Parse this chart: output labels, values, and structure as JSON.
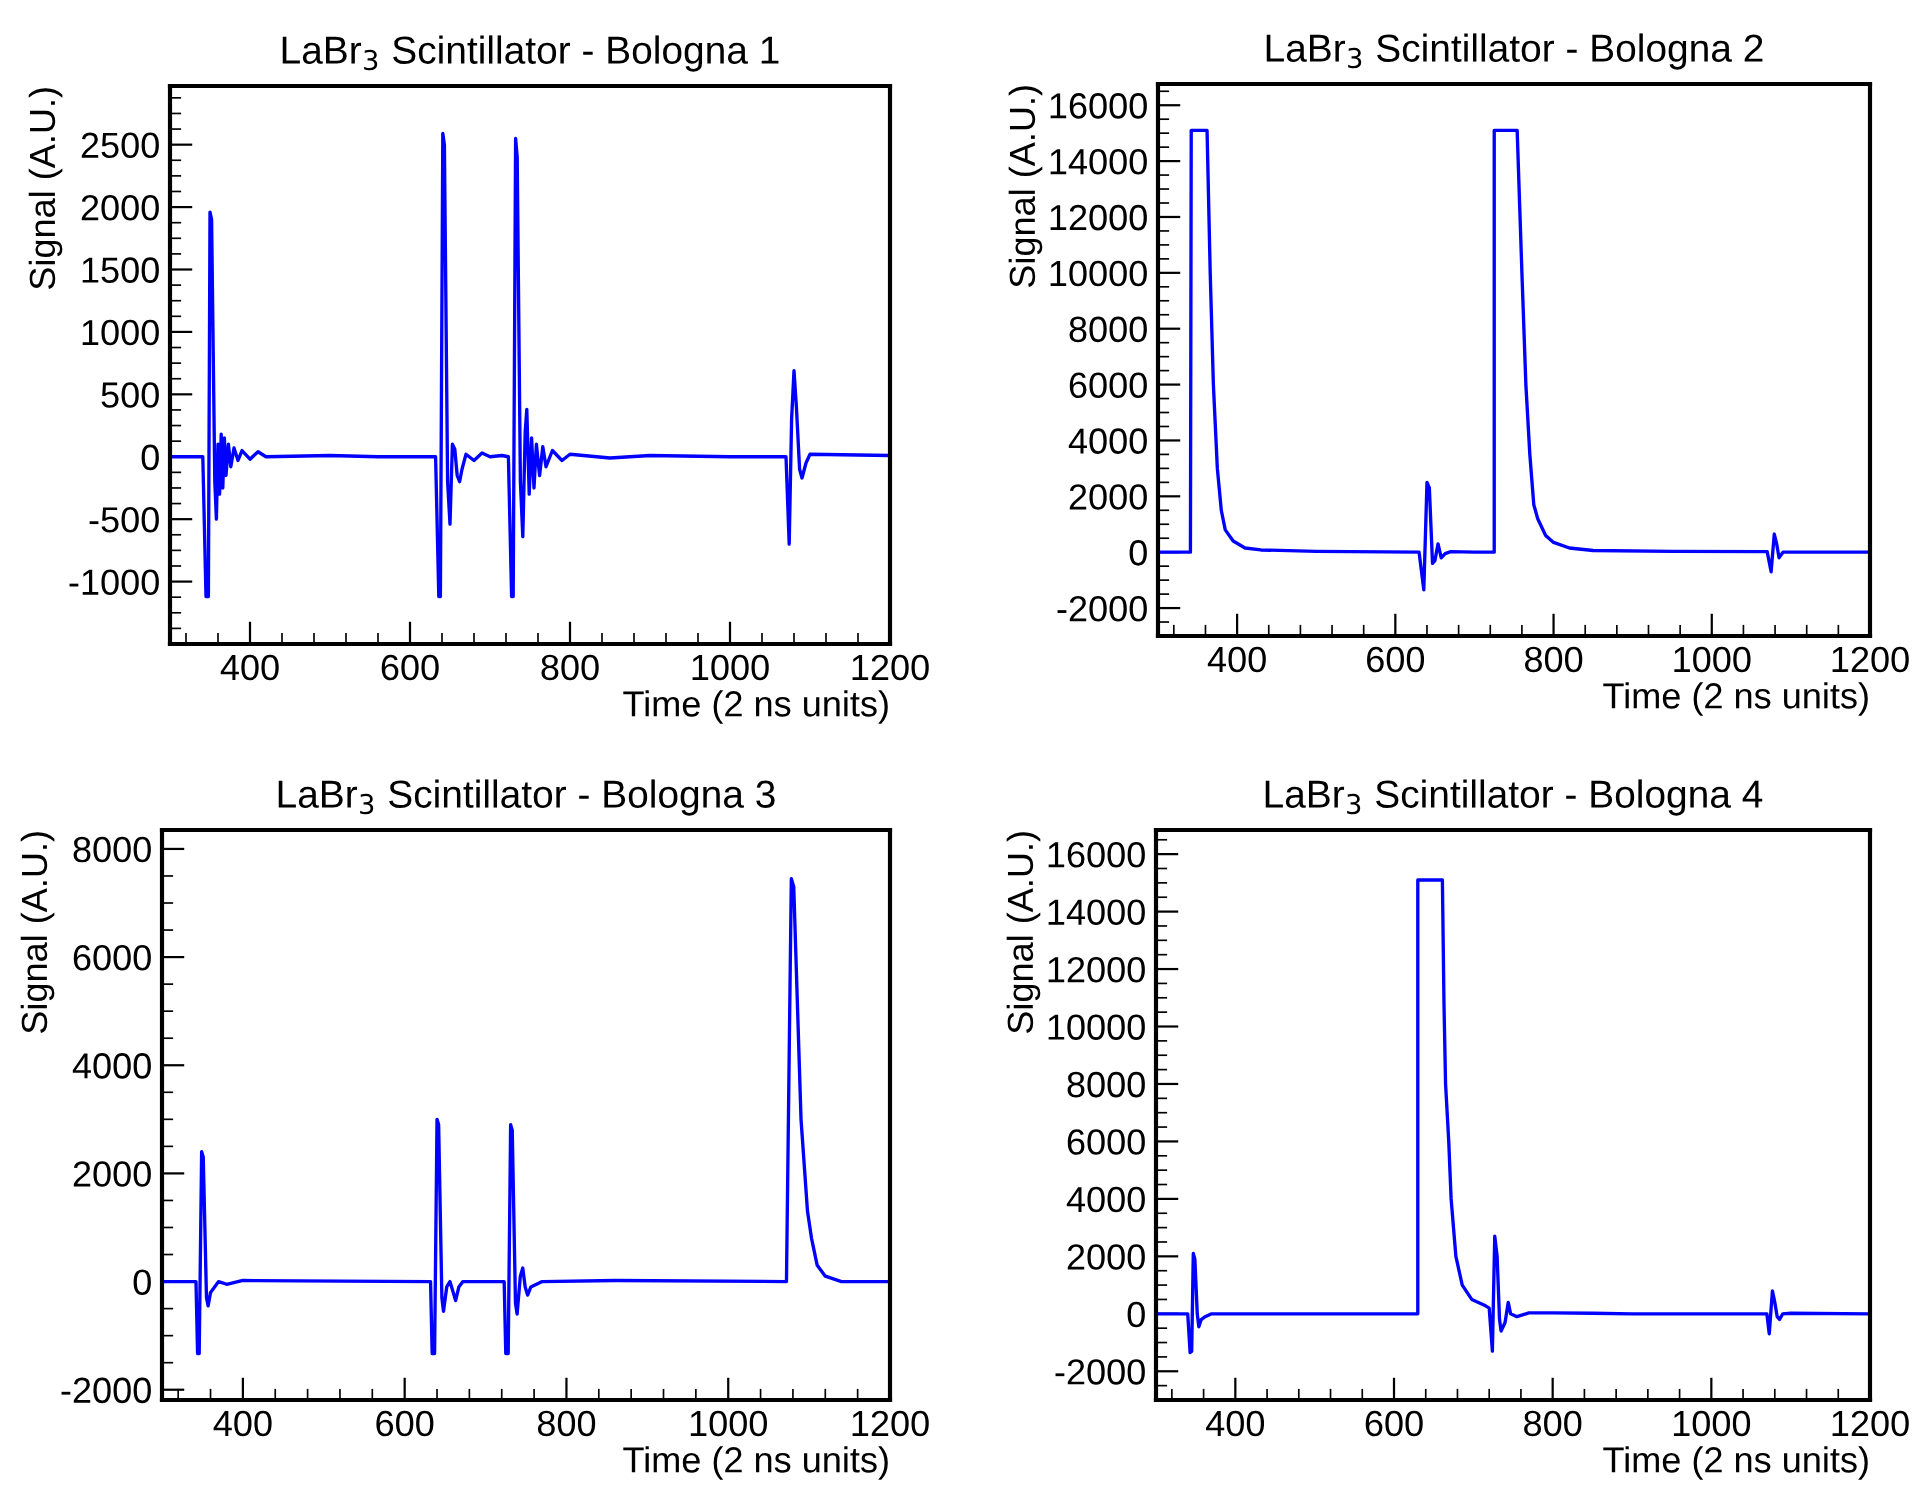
{
  "chart_data": [
    {
      "type": "line",
      "title": "LaBr$_{3}$ Scintillator - Bologna 1",
      "xlabel": "Time (2 ns units)",
      "ylabel": "Signal (A.U.)",
      "xlim": [
        300,
        1200
      ],
      "xticks": [
        400,
        600,
        800,
        1000,
        1200
      ],
      "ylim": [
        -1500,
        2970
      ],
      "yticks": [
        -1000,
        -500,
        0,
        500,
        1000,
        1500,
        2000,
        2500
      ],
      "series": [
        {
          "color": "#0000ff",
          "x": [
            300,
            341,
            345,
            348,
            350,
            352,
            356,
            358,
            360,
            362,
            364,
            366,
            368,
            370,
            373,
            376,
            380,
            385,
            390,
            400,
            410,
            420,
            500,
            560,
            632,
            636,
            638,
            641,
            643,
            647,
            650,
            653,
            656,
            659,
            662,
            665,
            670,
            680,
            690,
            700,
            715,
            723,
            727,
            729,
            732,
            734,
            738,
            741,
            744,
            746,
            749,
            752,
            755,
            758,
            762,
            766,
            770,
            778,
            790,
            800,
            850,
            900,
            1000,
            1070,
            1074,
            1077,
            1080,
            1083,
            1087,
            1090,
            1095,
            1100,
            1200
          ],
          "values": [
            0,
            0,
            -1120,
            -1120,
            1960,
            1900,
            -200,
            -500,
            100,
            -300,
            180,
            -250,
            150,
            -150,
            100,
            -80,
            70,
            -30,
            50,
            -20,
            40,
            0,
            10,
            0,
            0,
            -1120,
            -1120,
            2590,
            2500,
            -200,
            -540,
            100,
            60,
            -150,
            -200,
            -100,
            20,
            -30,
            30,
            0,
            10,
            0,
            -1120,
            -1120,
            2550,
            2400,
            -200,
            -640,
            200,
            380,
            -300,
            150,
            -250,
            100,
            -150,
            80,
            -80,
            50,
            -30,
            20,
            -10,
            10,
            0,
            0,
            -700,
            300,
            690,
            400,
            -100,
            -170,
            -50,
            20,
            10
          ]
        }
      ]
    },
    {
      "type": "line",
      "title": "LaBr$_{3}$ Scintillator - Bologna 2",
      "xlabel": "Time (2 ns units)",
      "ylabel": "Signal (A.U.)",
      "xlim": [
        300,
        1200
      ],
      "xticks": [
        400,
        600,
        800,
        1000,
        1200
      ],
      "ylim": [
        -3000,
        16760
      ],
      "yticks": [
        -2000,
        0,
        2000,
        4000,
        6000,
        8000,
        10000,
        12000,
        14000,
        16000
      ],
      "series": [
        {
          "color": "#0000ff",
          "x": [
            300,
            341,
            342,
            362,
            366,
            370,
            375,
            380,
            385,
            395,
            410,
            430,
            500,
            630,
            636,
            640,
            643,
            647,
            650,
            654,
            658,
            663,
            670,
            700,
            725,
            725,
            754,
            760,
            765,
            770,
            775,
            780,
            790,
            800,
            820,
            850,
            950,
            1070,
            1075,
            1079,
            1082,
            1085,
            1090,
            1200
          ],
          "values": [
            0,
            0,
            15100,
            15100,
            10000,
            6000,
            3000,
            1500,
            800,
            400,
            150,
            80,
            30,
            0,
            -1350,
            2500,
            2300,
            -400,
            -300,
            300,
            -200,
            -50,
            20,
            0,
            0,
            15100,
            15100,
            10000,
            6000,
            3500,
            1700,
            1200,
            600,
            350,
            150,
            60,
            30,
            20,
            -700,
            650,
            300,
            -200,
            0,
            0
          ]
        }
      ]
    },
    {
      "type": "line",
      "title": "LaBr$_{3}$ Scintillator - Bologna 3",
      "xlabel": "Time (2 ns units)",
      "ylabel": "Signal (A.U.)",
      "xlim": [
        300,
        1200
      ],
      "xticks": [
        400,
        600,
        800,
        1000,
        1200
      ],
      "ylim": [
        -2190,
        8350
      ],
      "yticks": [
        -2000,
        0,
        2000,
        4000,
        6000,
        8000
      ],
      "series": [
        {
          "color": "#0000ff",
          "x": [
            300,
            342,
            344,
            346,
            349,
            351,
            355,
            357,
            360,
            365,
            370,
            380,
            400,
            632,
            634,
            637,
            640,
            642,
            646,
            648,
            652,
            656,
            660,
            663,
            667,
            672,
            723,
            725,
            728,
            731,
            733,
            737,
            739,
            743,
            746,
            749,
            752,
            756,
            770,
            860,
            1072,
            1078,
            1081,
            1090,
            1098,
            1103,
            1110,
            1120,
            1140,
            1200
          ],
          "values": [
            0,
            0,
            -1330,
            -1330,
            2400,
            2300,
            -300,
            -450,
            -200,
            -100,
            0,
            -50,
            20,
            0,
            -1330,
            -1330,
            3000,
            2900,
            -300,
            -550,
            -100,
            0,
            -200,
            -350,
            -100,
            0,
            0,
            -1330,
            -1330,
            2900,
            2800,
            -400,
            -600,
            100,
            250,
            -100,
            -250,
            -100,
            0,
            20,
            0,
            7450,
            7300,
            3000,
            1300,
            800,
            300,
            100,
            0,
            0
          ]
        }
      ]
    },
    {
      "type": "line",
      "title": "LaBr$_{3}$ Scintillator - Bologna 4",
      "xlabel": "Time (2 ns units)",
      "ylabel": "Signal (A.U.)",
      "xlim": [
        300,
        1200
      ],
      "xticks": [
        400,
        600,
        800,
        1000,
        1200
      ],
      "ylim": [
        -3000,
        16840
      ],
      "yticks": [
        -2000,
        0,
        2000,
        4000,
        6000,
        8000,
        10000,
        12000,
        14000,
        16000
      ],
      "series": [
        {
          "color": "#0000ff",
          "x": [
            300,
            340,
            343,
            345,
            347,
            349,
            352,
            354,
            357,
            362,
            370,
            395,
            630,
            630,
            661,
            663,
            665,
            669,
            672,
            678,
            686,
            698,
            714,
            720,
            724,
            727,
            730,
            733,
            735,
            740,
            744,
            747,
            755,
            770,
            800,
            850,
            900,
            1070,
            1073,
            1077,
            1080,
            1083,
            1086,
            1090,
            1100,
            1200
          ],
          "values": [
            0,
            0,
            -1350,
            -1300,
            2100,
            1900,
            0,
            -450,
            -200,
            -100,
            0,
            0,
            0,
            15100,
            15100,
            10800,
            8000,
            6000,
            4000,
            2000,
            1000,
            500,
            300,
            200,
            -1300,
            2700,
            2000,
            -200,
            -600,
            -300,
            400,
            0,
            -100,
            30,
            30,
            20,
            0,
            0,
            -700,
            800,
            400,
            -100,
            -200,
            0,
            20,
            0
          ]
        }
      ]
    }
  ]
}
